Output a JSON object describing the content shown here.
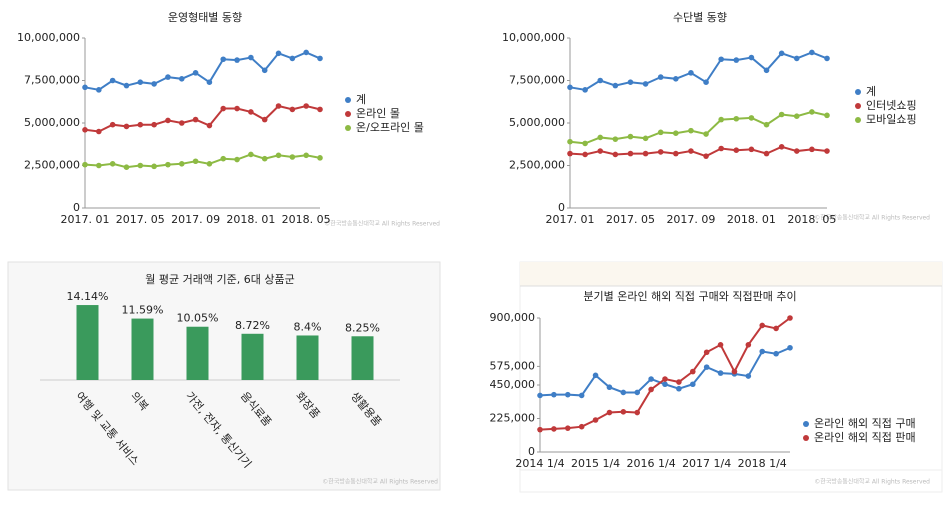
{
  "chart_data": [
    {
      "type": "line",
      "title": "운영형태별 동향",
      "categories": [
        "2017. 01",
        null,
        null,
        null,
        "2017. 05",
        null,
        null,
        null,
        "2017. 09",
        null,
        null,
        null,
        "2018. 01",
        null,
        null,
        null,
        "2018. 05",
        null
      ],
      "series": [
        {
          "name": "계",
          "color": "#3f7ec6",
          "values": [
            7100000,
            6950000,
            7500000,
            7200000,
            7400000,
            7300000,
            7700000,
            7600000,
            7950000,
            7400000,
            8750000,
            8700000,
            8850000,
            8100000,
            9100000,
            8800000,
            9150000,
            8800000
          ]
        },
        {
          "name": "온라인 몰",
          "color": "#c0393a",
          "values": [
            4600000,
            4500000,
            4900000,
            4800000,
            4900000,
            4900000,
            5150000,
            5000000,
            5200000,
            4850000,
            5850000,
            5850000,
            5650000,
            5200000,
            6000000,
            5800000,
            6000000,
            5800000
          ]
        },
        {
          "name": "온/오프라인 몰",
          "color": "#8dba44",
          "values": [
            2550000,
            2500000,
            2600000,
            2400000,
            2500000,
            2450000,
            2550000,
            2600000,
            2750000,
            2600000,
            2900000,
            2850000,
            3150000,
            2900000,
            3100000,
            3000000,
            3100000,
            2950000
          ]
        }
      ],
      "ylim": [
        0,
        10000000
      ],
      "yticks": [
        0,
        {
          "value": 2500000,
          "label": "2,500,000"
        },
        {
          "value": 5000000,
          "label": "5,000,000"
        },
        {
          "value": 7500000,
          "label": "7,500,000"
        },
        {
          "value": 10000000,
          "label": "10,000,000"
        }
      ],
      "watermark": "©한국방송통신대학교 All Rights Reserved"
    },
    {
      "type": "line",
      "title": "수단별 동향",
      "categories": [
        "2017. 01",
        null,
        null,
        null,
        "2017. 05",
        null,
        null,
        null,
        "2017. 09",
        null,
        null,
        null,
        "2018. 01",
        null,
        null,
        null,
        "2018. 05",
        null
      ],
      "series": [
        {
          "name": "계",
          "color": "#3f7ec6",
          "values": [
            7100000,
            6950000,
            7500000,
            7200000,
            7400000,
            7300000,
            7700000,
            7600000,
            7950000,
            7400000,
            8750000,
            8700000,
            8850000,
            8100000,
            9100000,
            8800000,
            9150000,
            8800000
          ]
        },
        {
          "name": "인터넷쇼핑",
          "color": "#c0393a",
          "values": [
            3200000,
            3150000,
            3350000,
            3150000,
            3200000,
            3200000,
            3300000,
            3200000,
            3350000,
            3050000,
            3500000,
            3400000,
            3450000,
            3200000,
            3600000,
            3350000,
            3450000,
            3350000
          ]
        },
        {
          "name": "모바일쇼핑",
          "color": "#8dba44",
          "values": [
            3900000,
            3800000,
            4150000,
            4050000,
            4200000,
            4100000,
            4450000,
            4400000,
            4550000,
            4350000,
            5200000,
            5250000,
            5300000,
            4900000,
            5500000,
            5400000,
            5650000,
            5450000
          ]
        }
      ],
      "ylim": [
        0,
        10000000
      ],
      "yticks": [
        0,
        {
          "value": 2500000,
          "label": "2,500,000"
        },
        {
          "value": 5000000,
          "label": "5,000,000"
        },
        {
          "value": 7500000,
          "label": "7,500,000"
        },
        {
          "value": 10000000,
          "label": "10,000,000"
        }
      ],
      "watermark": "©한국방송통신대학교 All Rights Reserved"
    },
    {
      "type": "bar",
      "title": "월 평균 거래액 기준, 6대 상품군",
      "categories": [
        "여행 및 교통 서비스",
        "의복",
        "가전, 전자, 통신기기",
        "음식료품",
        "화장품",
        "생활용품"
      ],
      "values": [
        14.14,
        11.59,
        10.05,
        8.72,
        8.4,
        8.25
      ],
      "value_labels": [
        "14.14%",
        "11.59%",
        "10.05%",
        "8.72%",
        "8.4%",
        "8.25%"
      ],
      "color": "#3a9a5c",
      "watermark": "©한국방송통신대학교 All Rights Reserved"
    },
    {
      "type": "line",
      "title": "분기별 온라인 해외 직접 구매와 직접판매 추이",
      "categories": [
        "2014 1/4",
        null,
        null,
        null,
        "2015 1/4",
        null,
        null,
        null,
        "2016 1/4",
        null,
        null,
        null,
        "2017 1/4",
        null,
        null,
        null,
        "2018 1/4",
        null,
        null
      ],
      "series": [
        {
          "name": "온라인 해외 직접 구매",
          "color": "#3f7ec6",
          "values": [
            380000,
            385000,
            385000,
            380000,
            515000,
            435000,
            400000,
            400000,
            490000,
            455000,
            425000,
            455000,
            570000,
            530000,
            525000,
            510000,
            675000,
            660000,
            700000
          ]
        },
        {
          "name": "온라인 해외 직접 판매",
          "color": "#c0393a",
          "values": [
            150000,
            155000,
            160000,
            170000,
            215000,
            265000,
            270000,
            265000,
            420000,
            490000,
            470000,
            540000,
            670000,
            720000,
            540000,
            720000,
            850000,
            830000,
            900000
          ]
        }
      ],
      "ylim": [
        0,
        900000
      ],
      "yticks": [
        0,
        {
          "value": 225000,
          "label": "225,000"
        },
        {
          "value": 450000,
          "label": "450,000"
        },
        {
          "value": 575000,
          "label": "575,000"
        },
        {
          "value": 900000,
          "label": "900,000"
        }
      ],
      "watermark": "©한국방송통신대학교 All Rights Reserved"
    }
  ]
}
